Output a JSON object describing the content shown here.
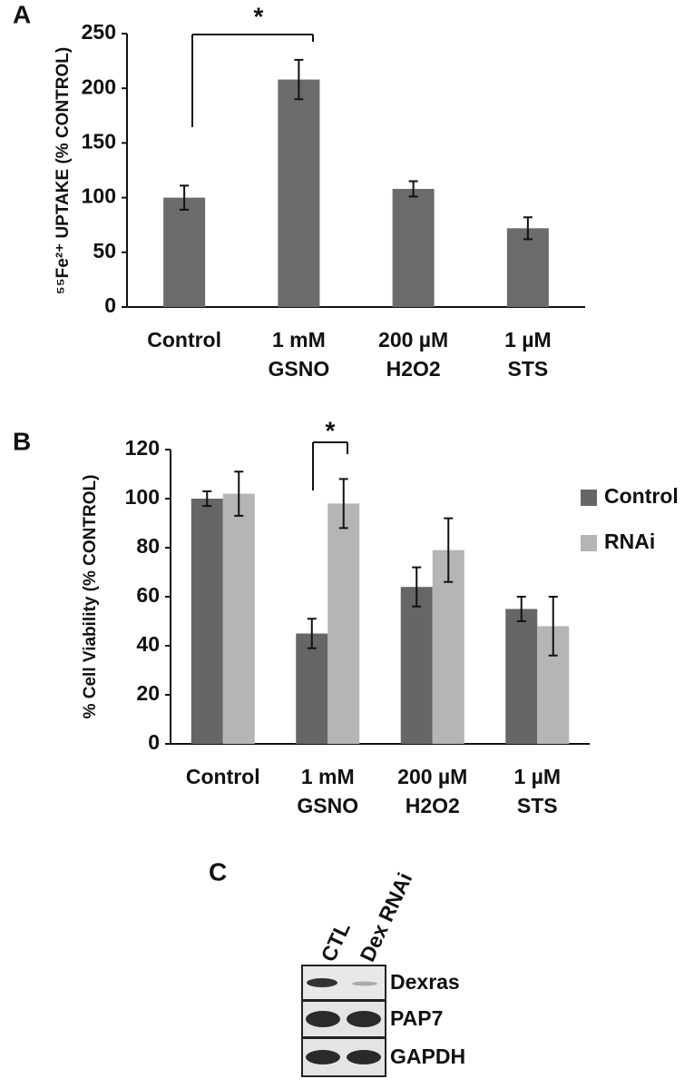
{
  "chart_data": [
    {
      "type": "bar",
      "panel": "A",
      "ylabel": "⁵⁵Fe²⁺ UPTAKE (% CONTROL)",
      "categories": [
        [
          "Control"
        ],
        [
          "1 mM",
          "GSNO"
        ],
        [
          "200 µM",
          "H2O2"
        ],
        [
          "1 µM",
          "STS"
        ]
      ],
      "values": [
        100,
        208,
        108,
        72
      ],
      "errors": [
        11,
        18,
        7,
        10
      ],
      "color": "#6b6b6b",
      "ylim": [
        0,
        250
      ],
      "yticks": [
        0,
        50,
        100,
        150,
        200,
        250
      ],
      "grid": false,
      "annotations": [
        {
          "text": "*"
        }
      ]
    },
    {
      "type": "bar",
      "panel": "B",
      "ylabel": "% Cell Viability  (% CONTROL)",
      "categories": [
        [
          "Control"
        ],
        [
          "1 mM",
          "GSNO"
        ],
        [
          "200 µM",
          "H2O2"
        ],
        [
          "1 µM",
          "STS"
        ]
      ],
      "series": [
        {
          "name": "Control",
          "color": "#666666",
          "values": [
            100,
            45,
            64,
            55
          ],
          "errors": [
            3,
            6,
            8,
            5
          ]
        },
        {
          "name": "RNAi",
          "color": "#b5b5b5",
          "values": [
            102,
            98,
            79,
            48
          ],
          "errors": [
            9,
            10,
            13,
            12
          ]
        }
      ],
      "ylim": [
        0,
        120
      ],
      "yticks": [
        0,
        20,
        40,
        60,
        80,
        100,
        120
      ],
      "grid": false,
      "legend": "right",
      "annotations": [
        {
          "text": "*"
        }
      ]
    }
  ],
  "blot": {
    "panel": "C",
    "lanes": [
      "CTL",
      "Dex RNAi"
    ],
    "rows": [
      "Dexras",
      "PAP7",
      "GAPDH"
    ]
  }
}
